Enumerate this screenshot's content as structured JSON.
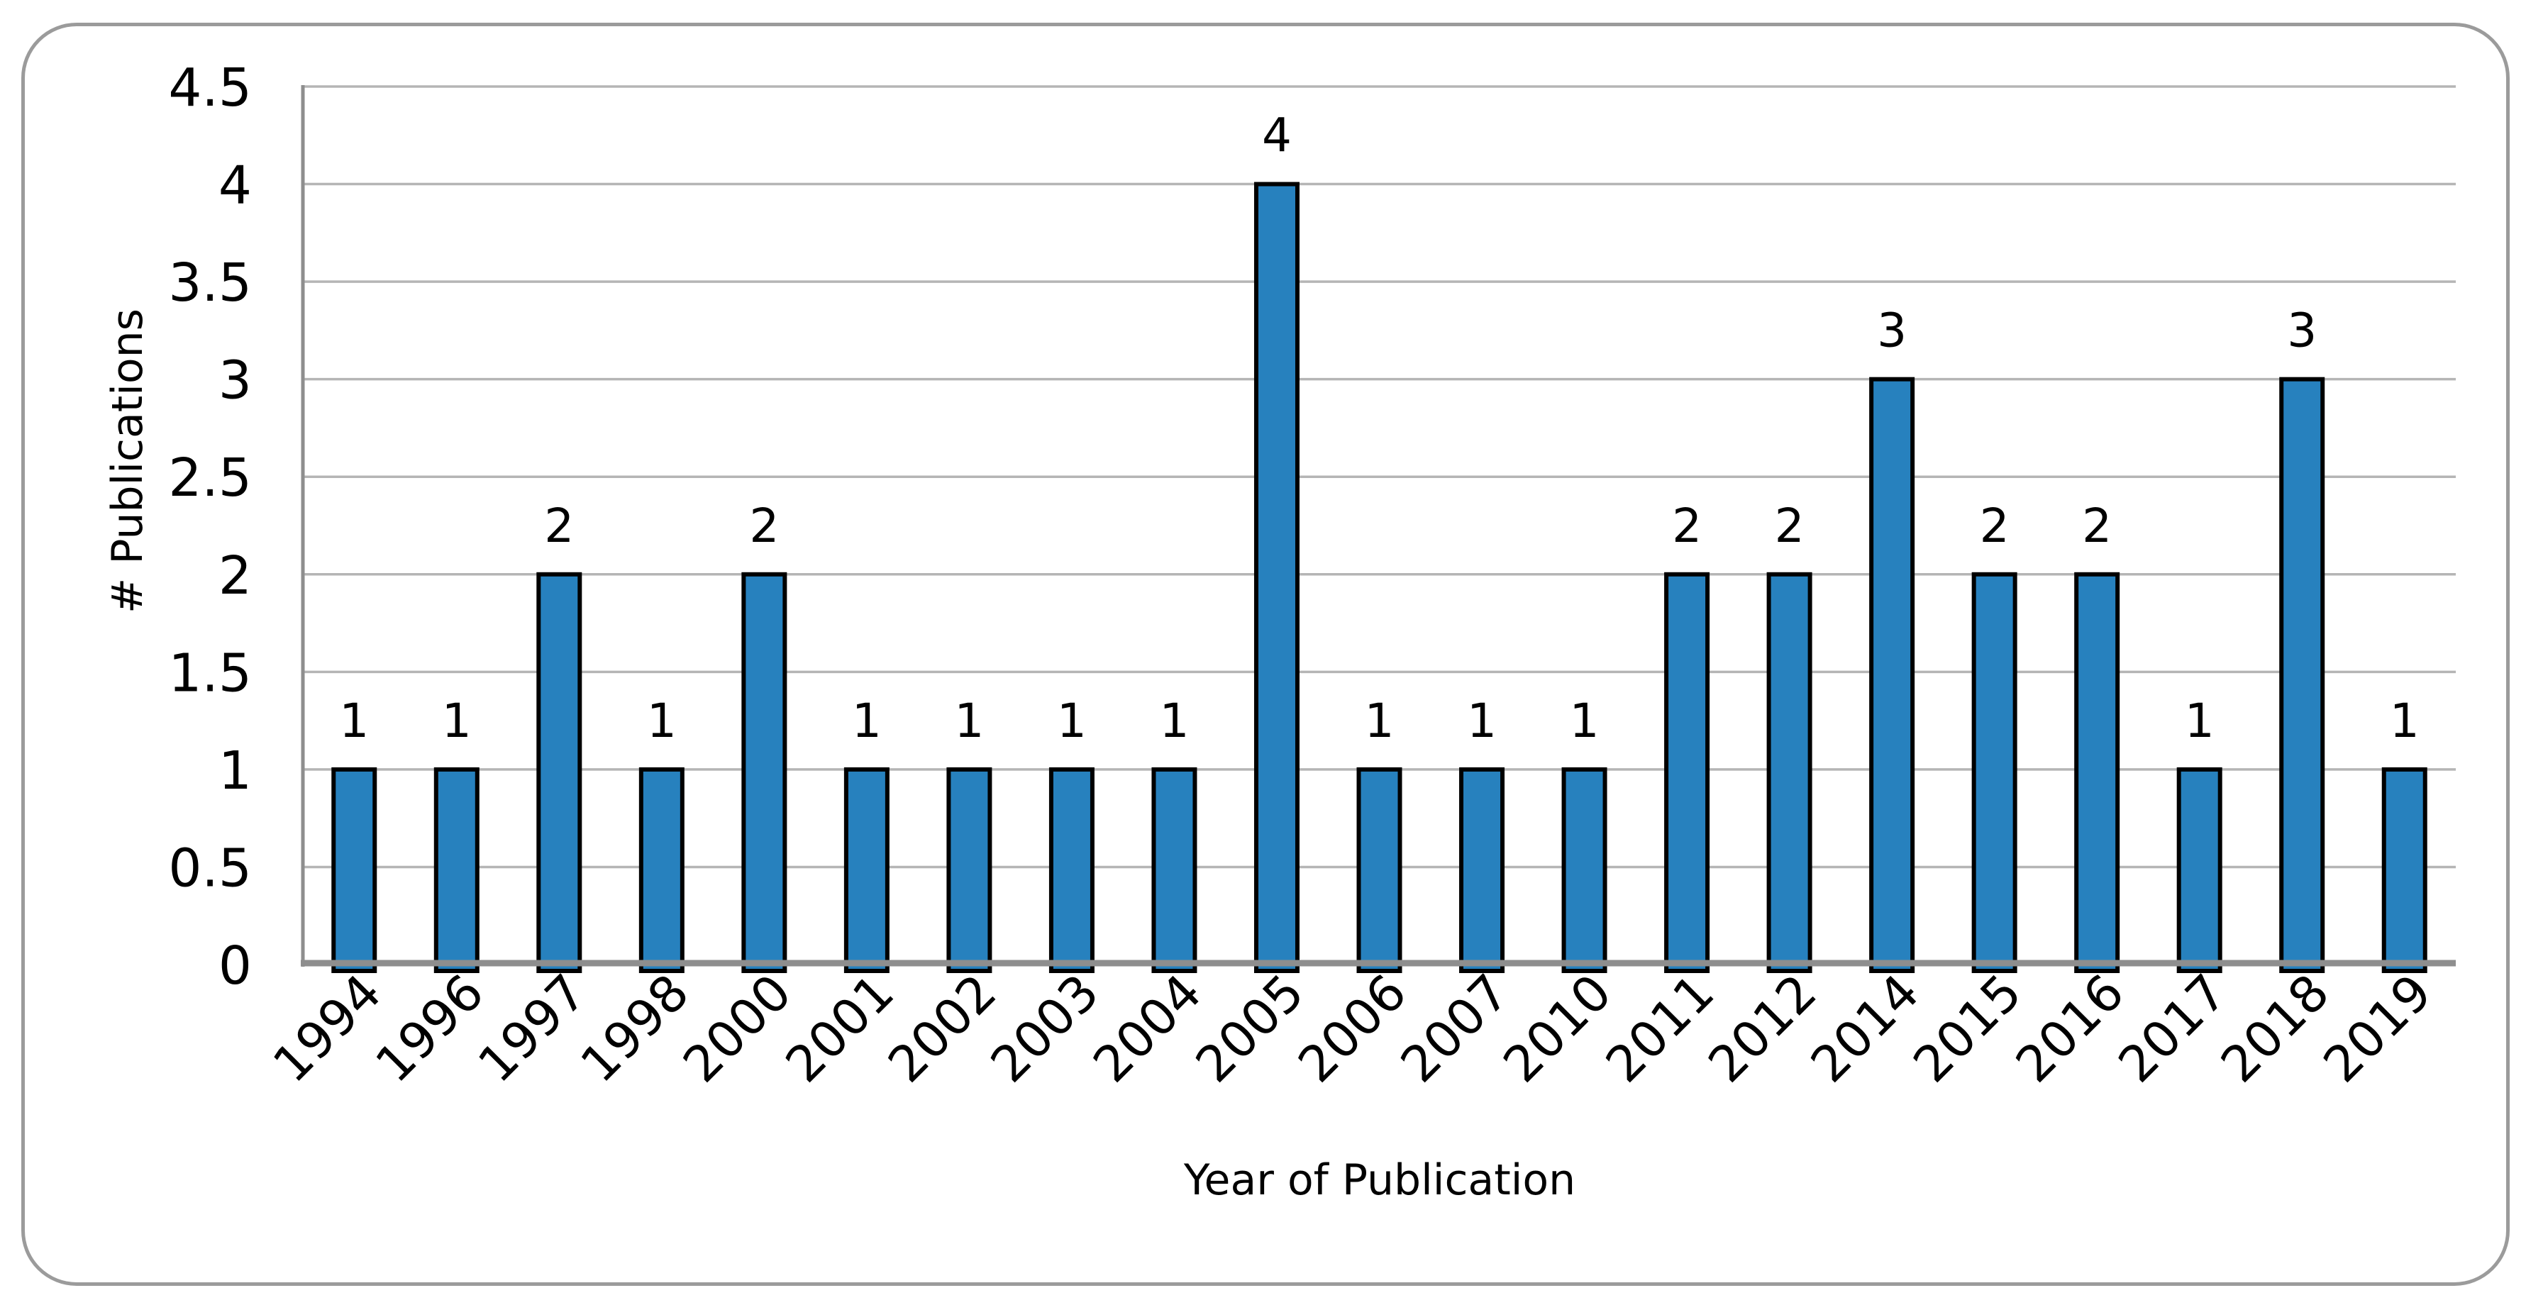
{
  "chart_data": {
    "type": "bar",
    "title": "",
    "xlabel": "Year of Publication",
    "ylabel": "# Publications",
    "categories": [
      "1994",
      "1996",
      "1997",
      "1998",
      "2000",
      "2001",
      "2002",
      "2003",
      "2004",
      "2005",
      "2006",
      "2007",
      "2010",
      "2011",
      "2012",
      "2014",
      "2015",
      "2016",
      "2017",
      "2018",
      "2019"
    ],
    "values": [
      1,
      1,
      2,
      1,
      2,
      1,
      1,
      1,
      1,
      4,
      1,
      1,
      1,
      2,
      2,
      3,
      2,
      2,
      1,
      3,
      1
    ],
    "data_labels": [
      "1",
      "1",
      "2",
      "1",
      "2",
      "1",
      "1",
      "1",
      "1",
      "4",
      "1",
      "1",
      "1",
      "2",
      "2",
      "3",
      "2",
      "2",
      "1",
      "3",
      "1"
    ],
    "ylim": [
      0,
      4.5
    ],
    "ytick_values": [
      0,
      0.5,
      1,
      1.5,
      2,
      2.5,
      3,
      3.5,
      4,
      4.5
    ],
    "ytick_labels": [
      "0",
      "0.5",
      "1",
      "1.5",
      "2",
      "2.5",
      "3",
      "3.5",
      "4",
      "4.5"
    ],
    "grid": true,
    "legend_position": "none",
    "colors": {
      "bar_fill": "#2781BE",
      "bar_border": "#000000",
      "gridline": "#B5B5B5",
      "axis_line": "#8E8E8E",
      "text": "#000000",
      "frame_border": "#9B9B9B",
      "background": "#FFFFFF"
    }
  }
}
